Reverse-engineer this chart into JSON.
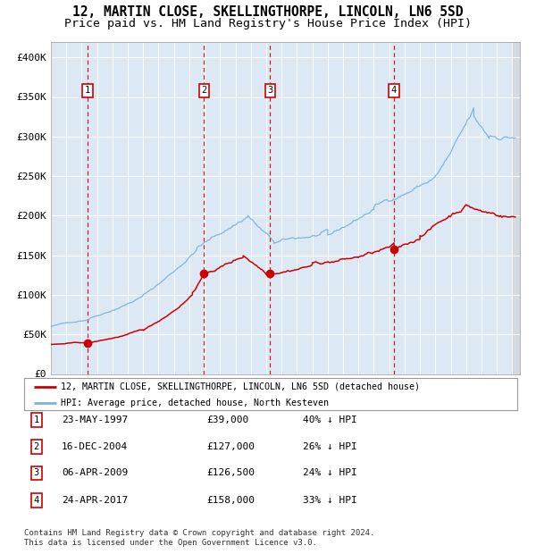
{
  "title": "12, MARTIN CLOSE, SKELLINGTHORPE, LINCOLN, LN6 5SD",
  "subtitle": "Price paid vs. HM Land Registry's House Price Index (HPI)",
  "title_fontsize": 10.5,
  "subtitle_fontsize": 9.5,
  "plot_bg_color": "#dce9f5",
  "grid_color": "#ffffff",
  "hpi_color": "#7ab4d8",
  "price_color": "#cc0000",
  "sale_marker_color": "#cc0000",
  "vline_color": "#cc0000",
  "ylim": [
    0,
    420000
  ],
  "yticks": [
    0,
    50000,
    100000,
    150000,
    200000,
    250000,
    300000,
    350000,
    400000
  ],
  "ytick_labels": [
    "£0",
    "£50K",
    "£100K",
    "£150K",
    "£200K",
    "£250K",
    "£300K",
    "£350K",
    "£400K"
  ],
  "sales": [
    {
      "date_num": 1997.38,
      "price": 39000,
      "label": "1"
    },
    {
      "date_num": 2004.96,
      "price": 127000,
      "label": "2"
    },
    {
      "date_num": 2009.26,
      "price": 126500,
      "label": "3"
    },
    {
      "date_num": 2017.31,
      "price": 158000,
      "label": "4"
    }
  ],
  "table_rows": [
    {
      "num": "1",
      "date": "23-MAY-1997",
      "price": "£39,000",
      "note": "40% ↓ HPI"
    },
    {
      "num": "2",
      "date": "16-DEC-2004",
      "price": "£127,000",
      "note": "26% ↓ HPI"
    },
    {
      "num": "3",
      "date": "06-APR-2009",
      "price": "£126,500",
      "note": "24% ↓ HPI"
    },
    {
      "num": "4",
      "date": "24-APR-2017",
      "price": "£158,000",
      "note": "33% ↓ HPI"
    }
  ],
  "legend_line1": "12, MARTIN CLOSE, SKELLINGTHORPE, LINCOLN, LN6 5SD (detached house)",
  "legend_line2": "HPI: Average price, detached house, North Kesteven",
  "footer": "Contains HM Land Registry data © Crown copyright and database right 2024.\nThis data is licensed under the Open Government Licence v3.0.",
  "xmin": 1995.0,
  "xmax": 2025.5
}
